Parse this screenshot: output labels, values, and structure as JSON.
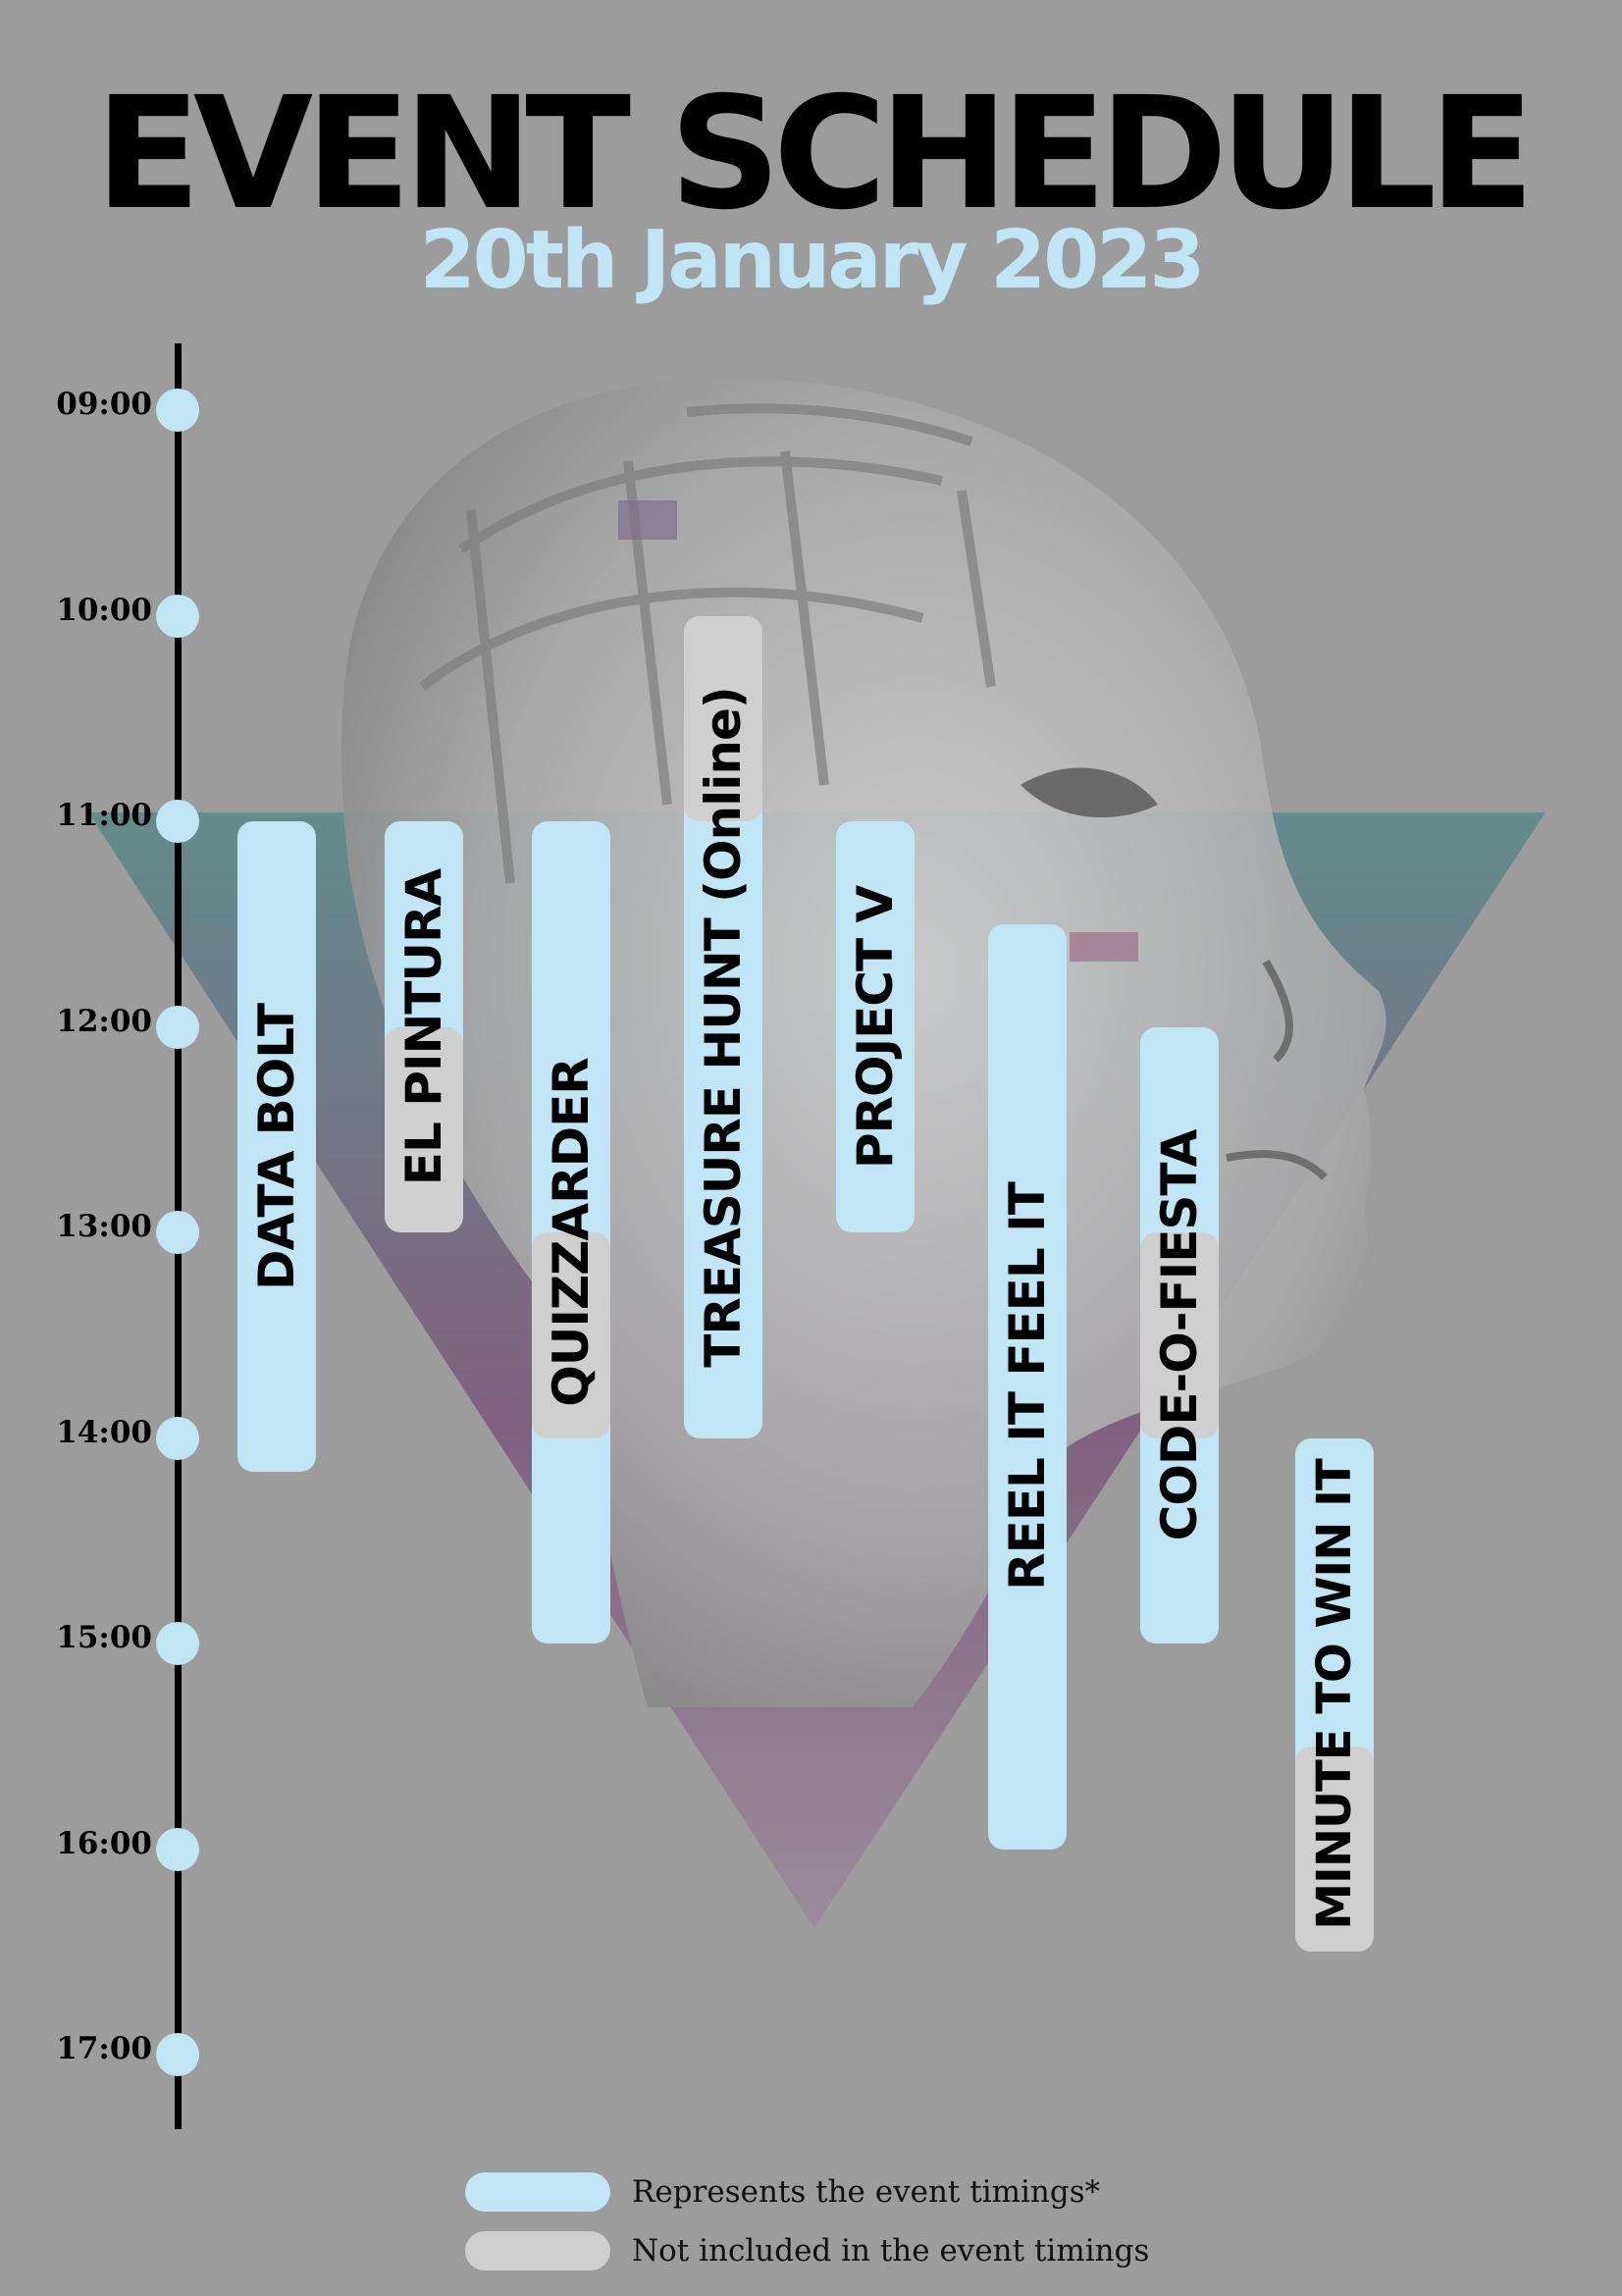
{
  "header": {
    "title": "EVENT SCHEDULE",
    "date": "20th January 2023"
  },
  "colors": {
    "background": "#9c9c9c",
    "event_timing": "#c0e6f6",
    "not_included": "#cfcfcf",
    "title": "#000000",
    "date": "#c0e6f6",
    "triangle_teal": "#5d8a8a",
    "triangle_purple": "#7e5a7c"
  },
  "timeline": {
    "times": [
      "09:00",
      "10:00",
      "11:00",
      "12:00",
      "13:00",
      "14:00",
      "15:00",
      "16:00",
      "17:00"
    ]
  },
  "events": [
    {
      "name": "DATA BOLT",
      "start": "11:00",
      "end": "14:10",
      "not_included": []
    },
    {
      "name": "EL PINTURA",
      "start": "11:00",
      "end": "13:00",
      "not_included": [
        [
          "12:00",
          "13:00"
        ]
      ]
    },
    {
      "name": "QUIZZARDER",
      "start": "11:00",
      "end": "15:00",
      "not_included": [
        [
          "13:00",
          "14:00"
        ]
      ]
    },
    {
      "name": "TREASURE HUNT (Online)",
      "start": "10:00",
      "end": "14:00",
      "not_included": [
        [
          "10:00",
          "11:00"
        ]
      ]
    },
    {
      "name": "PROJECT V",
      "start": "11:00",
      "end": "13:00",
      "not_included": []
    },
    {
      "name": "REEL IT FEEL IT",
      "start": "11:30",
      "end": "16:00",
      "not_included": []
    },
    {
      "name": "CODE-O-FIESTA",
      "start": "12:00",
      "end": "15:00",
      "not_included": [
        [
          "13:00",
          "14:00"
        ]
      ]
    },
    {
      "name": "MINUTE TO WIN IT",
      "start": "14:00",
      "end": "16:30",
      "not_included": [
        [
          "15:30",
          "16:30"
        ]
      ]
    }
  ],
  "legend": [
    {
      "text": "Represents the event timings*",
      "kind": "event_timing"
    },
    {
      "text": "Not included in the event timings",
      "kind": "not_included"
    }
  ]
}
